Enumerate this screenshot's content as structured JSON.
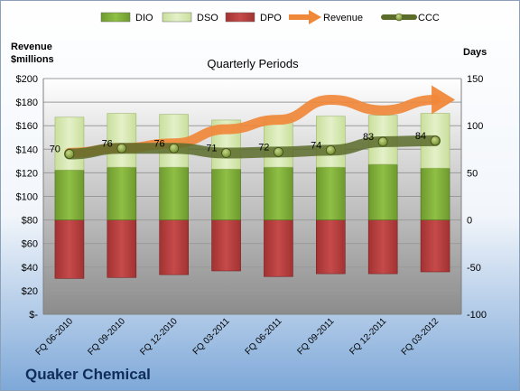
{
  "chart_data": {
    "type": "bar",
    "title": "Quarterly Periods",
    "company": "Quaker Chemical",
    "left_axis_label": "Revenue\n$millions",
    "right_axis_label": "Days",
    "categories": [
      "FQ 06-2010",
      "FQ 09-2010",
      "FQ 12-2010",
      "FQ 03-2011",
      "FQ 06-2011",
      "FQ 09-2011",
      "FQ 12-2011",
      "FQ 03-2012"
    ],
    "left_axis": {
      "min": 0,
      "max": 200,
      "step": 20,
      "tick_labels": [
        "$-",
        "$20",
        "$40",
        "$60",
        "$80",
        "$100",
        "$120",
        "$140",
        "$160",
        "$180",
        "$200"
      ]
    },
    "right_axis": {
      "min": -100,
      "max": 150,
      "step": 50,
      "tick_labels": [
        "-100",
        "-50",
        "0",
        "50",
        "100",
        "150"
      ]
    },
    "legend": [
      {
        "name": "DIO",
        "color": "#7aa336",
        "kind": "bar"
      },
      {
        "name": "DSO",
        "color": "#d6e8b0",
        "kind": "bar"
      },
      {
        "name": "DPO",
        "color": "#b63b3b",
        "kind": "bar"
      },
      {
        "name": "Revenue",
        "color": "#f0883a",
        "kind": "arrow"
      },
      {
        "name": "CCC",
        "color": "#5b6b2a",
        "kind": "line"
      }
    ],
    "legend_position": "top",
    "series": [
      {
        "name": "DIO",
        "axis": "right",
        "values": [
          53,
          56,
          56,
          54,
          56,
          56,
          59,
          55
        ]
      },
      {
        "name": "DSO",
        "axis": "right",
        "values": [
          56,
          57,
          56,
          52,
          53,
          54,
          52,
          58
        ]
      },
      {
        "name": "DPO",
        "axis": "right",
        "values": [
          -62,
          -61,
          -58,
          -54,
          -60,
          -57,
          -57,
          -55
        ]
      },
      {
        "name": "Revenue",
        "axis": "left",
        "values": [
          137,
          141,
          145,
          157,
          165,
          182,
          173,
          182
        ]
      },
      {
        "name": "CCC",
        "axis": "right",
        "values": [
          70,
          76,
          76,
          71,
          72,
          74,
          83,
          84
        ],
        "labels": [
          "70",
          "76",
          "76",
          "71",
          "72",
          "74",
          "83",
          "84"
        ]
      }
    ],
    "colors": {
      "background_top": "#ffffff",
      "background_bottom": "#7ea8d8",
      "plot_top": "#ffffff",
      "plot_bottom": "#909090",
      "gridline": "#a0a0a0",
      "title_color": "#1a3a6a"
    }
  }
}
